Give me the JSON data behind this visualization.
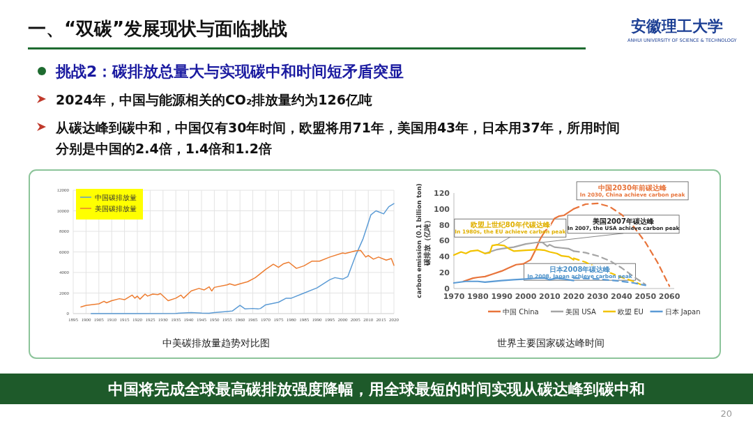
{
  "chart_data": [
    {
      "type": "other",
      "title": "一、“双碳”发展现状与面临挑战",
      "annotations": [
        "挑战2：碳排放总量大与实现碳中和时间短矛盾突显",
        "2024年，中国与能源相关的CO₂排放量约为126亿吨",
        "从碳达峰到碳中和，中国仅有30年时间，欧盟将用71年，美国用43年，日本用37年，所用时间分别是中国的2.4倍，1.4倍和1.2倍",
        "中国将完成全球最高碳排放强度降幅，用全球最短的时间实现从碳达峰到碳中和",
        "20",
        "安徽理工大学",
        "ANHUI UNIVERSITY OF SCIENCE & TECHNOLOGY"
      ]
    },
    {
      "type": "line",
      "xlim": [
        1895,
        2020
      ],
      "xticks": [
        1895,
        1900,
        1905,
        1910,
        1915,
        1920,
        1925,
        1930,
        1935,
        1940,
        1945,
        1950,
        1955,
        1960,
        1965,
        1970,
        1975,
        1980,
        1985,
        1990,
        1995,
        2000,
        2005,
        2010,
        2015,
        2020
      ],
      "ylim": [
        0,
        12000
      ],
      "yticks": [
        0,
        2000,
        4000,
        6000,
        8000,
        10000,
        12000
      ],
      "grid": true,
      "legend": "top left",
      "annotations": [
        "中美碳排放量趋势对比图"
      ],
      "series": [
        {
          "name": "中国碳排放量",
          "color": "#5b9bd5",
          "x": [
            1902,
            1920,
            1935,
            1941,
            1945,
            1948,
            1950,
            1955,
            1957,
            1960,
            1962,
            1965,
            1967,
            1968,
            1970,
            1975,
            1978,
            1980,
            1985,
            1990,
            1995,
            1997,
            2000,
            2002,
            2005,
            2008,
            2011,
            2013,
            2016,
            2018,
            2020
          ],
          "values": [
            0,
            0,
            20,
            100,
            50,
            40,
            100,
            200,
            250,
            800,
            450,
            500,
            450,
            500,
            850,
            1100,
            1500,
            1500,
            2000,
            2500,
            3300,
            3500,
            3350,
            3600,
            5600,
            7300,
            9600,
            10000,
            9700,
            10400,
            10700
          ]
        },
        {
          "name": "美国碳排放量",
          "color": "#ed7d31",
          "x": [
            1898,
            1900,
            1905,
            1907,
            1908,
            1910,
            1913,
            1915,
            1918,
            1919,
            1920,
            1921,
            1923,
            1924,
            1926,
            1928,
            1929,
            1932,
            1935,
            1937,
            1938,
            1941,
            1944,
            1946,
            1948,
            1949,
            1950,
            1955,
            1956,
            1958,
            1960,
            1963,
            1966,
            1970,
            1973,
            1975,
            1977,
            1979,
            1982,
            1985,
            1988,
            1991,
            1995,
            2000,
            2001,
            2005,
            2007,
            2009,
            2010,
            2012,
            2014,
            2017,
            2019,
            2020
          ],
          "values": [
            650,
            800,
            950,
            1200,
            1050,
            1250,
            1450,
            1350,
            1800,
            1500,
            1700,
            1400,
            1900,
            1700,
            1900,
            1850,
            1950,
            1250,
            1500,
            1800,
            1500,
            2200,
            2450,
            2300,
            2600,
            2200,
            2550,
            2800,
            2900,
            2750,
            2900,
            3100,
            3500,
            4300,
            4800,
            4500,
            4850,
            5000,
            4400,
            4650,
            5100,
            5100,
            5500,
            5900,
            5850,
            6100,
            6150,
            5500,
            5650,
            5300,
            5500,
            5200,
            5350,
            4700
          ]
        }
      ]
    },
    {
      "type": "line",
      "xlim": [
        1970,
        2062
      ],
      "xticks": [
        1970,
        1980,
        1990,
        2000,
        2010,
        2020,
        2030,
        2040,
        2050,
        2060
      ],
      "ylim": [
        0,
        120
      ],
      "yticks": [
        0,
        20,
        40,
        60,
        80,
        100,
        120
      ],
      "ylabel": "carbon emission (0.1 billion ton)\n碳排放（亿吨）",
      "legend": "bottom",
      "annotations": [
        {
          "text": "中国2030年前碳达峰\nIn 2030, China achieve carbon peak",
          "x": 2030,
          "y": 107
        },
        {
          "text": "美国2007年碳达峰\nIn 2007, the USA achieve carbon peak",
          "x": 2007,
          "y": 58
        },
        {
          "text": "欧盟上世纪80年代碳达峰\nIn 1980s, the EU achieve carbon peak",
          "x": 1988,
          "y": 55
        },
        {
          "text": "日本2008年碳达峰\nIn 2008, Japan achieve carbon peak",
          "x": 2008,
          "y": 13
        },
        "世界主要国家碳达峰时间"
      ],
      "series": [
        {
          "name": "中国 China",
          "color": "#e8743b",
          "line_style": "solid",
          "x": [
            1974,
            1978,
            1980,
            1983,
            1986,
            1990,
            1993,
            1996,
            1999,
            2002,
            2004,
            2006,
            2008,
            2010,
            2012,
            2014,
            2016,
            2018,
            2020
          ],
          "values": [
            9,
            13,
            14,
            15,
            18,
            22,
            26,
            30,
            31,
            36,
            48,
            62,
            72,
            78,
            88,
            91,
            92,
            96,
            100
          ]
        },
        {
          "name": "美国 USA",
          "color": "#a5a5a5",
          "line_style": "solid",
          "x": [
            1983,
            1985,
            1988,
            1990,
            1995,
            2000,
            2005,
            2007,
            2009,
            2010,
            2012,
            2015,
            2018,
            2020
          ],
          "values": [
            44,
            46,
            49,
            50,
            52,
            56,
            58,
            58,
            53,
            55,
            52,
            51,
            50,
            47
          ]
        },
        {
          "name": "欧盟 EU",
          "color": "#f2c200",
          "line_style": "solid",
          "x": [
            1970,
            1973,
            1975,
            1977,
            1980,
            1983,
            1985,
            1986,
            1988,
            1991,
            1993,
            1995,
            2000,
            2005,
            2008,
            2010,
            2013,
            2015,
            2018,
            2020
          ],
          "values": [
            42,
            46,
            44,
            47,
            48,
            44,
            45,
            54,
            55,
            54,
            50,
            47,
            48,
            49,
            48,
            46,
            44,
            41,
            40,
            36
          ]
        },
        {
          "name": "日本 Japan",
          "color": "#5b9bd5",
          "line_style": "solid",
          "x": [
            1970,
            1975,
            1980,
            1983,
            1990,
            1995,
            2000,
            2005,
            2008,
            2010,
            2013,
            2016,
            2020
          ],
          "values": [
            7,
            9,
            9,
            8,
            10,
            11,
            12,
            13,
            13,
            11,
            13,
            12,
            10
          ]
        },
        {
          "color": "#e8743b",
          "line_style": "dashed",
          "x": [
            2020,
            2025,
            2030,
            2035,
            2040,
            2045,
            2050,
            2055,
            2060
          ],
          "values": [
            100,
            106,
            107,
            103,
            93,
            78,
            58,
            33,
            3
          ]
        },
        {
          "color": "#a5a5a5",
          "line_style": "dashed",
          "x": [
            2020,
            2025,
            2030,
            2035,
            2040,
            2045,
            2050
          ],
          "values": [
            47,
            45,
            41,
            35,
            26,
            15,
            5
          ]
        },
        {
          "color": "#f2c200",
          "line_style": "dashed",
          "x": [
            2020,
            2025,
            2030,
            2035,
            2040,
            2045,
            2048
          ],
          "values": [
            38,
            33,
            26,
            20,
            14,
            9,
            5
          ]
        },
        {
          "color": "#5b9bd5",
          "line_style": "dashed",
          "x": [
            2020,
            2030,
            2040,
            2045,
            2050
          ],
          "values": [
            13,
            12,
            9,
            7,
            4
          ]
        }
      ]
    }
  ]
}
